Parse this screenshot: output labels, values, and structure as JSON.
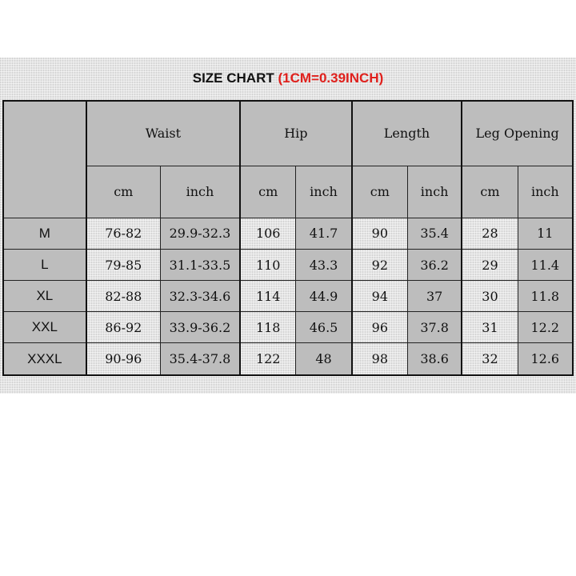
{
  "title": {
    "main": "SIZE CHART ",
    "conversion": "(1CM=0.39INCH)"
  },
  "groups": [
    "Waist",
    "Hip",
    "Length",
    "Leg Opening"
  ],
  "units": {
    "cm": "cm",
    "inch": "inch"
  },
  "rows": [
    {
      "size": "M",
      "values": [
        "76-82",
        "29.9-32.3",
        "106",
        "41.7",
        "90",
        "35.4",
        "28",
        "11"
      ]
    },
    {
      "size": "L",
      "values": [
        "79-85",
        "31.1-33.5",
        "110",
        "43.3",
        "92",
        "36.2",
        "29",
        "11.4"
      ]
    },
    {
      "size": "XL",
      "values": [
        "82-88",
        "32.3-34.6",
        "114",
        "44.9",
        "94",
        "37",
        "30",
        "11.8"
      ]
    },
    {
      "size": "XXL",
      "values": [
        "86-92",
        "33.9-36.2",
        "118",
        "46.5",
        "96",
        "37.8",
        "31",
        "12.2"
      ]
    },
    {
      "size": "XXXL",
      "values": [
        "90-96",
        "35.4-37.8",
        "122",
        "48",
        "98",
        "38.6",
        "32",
        "12.6"
      ]
    }
  ],
  "colors": {
    "header_gray": "#bdbdbd",
    "accent_red": "#e0201c"
  }
}
